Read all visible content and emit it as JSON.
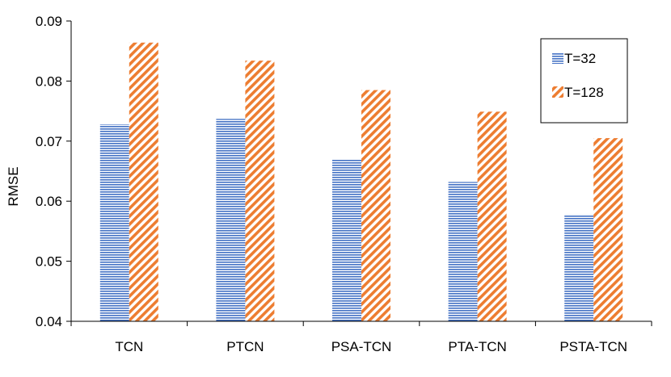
{
  "chart_data": {
    "type": "bar",
    "title": "",
    "xlabel": "",
    "ylabel": "RMSE",
    "ylim": [
      0.04,
      0.09
    ],
    "yticks": [
      "0.04",
      "0.05",
      "0.06",
      "0.07",
      "0.08",
      "0.09"
    ],
    "categories": [
      "TCN",
      "PTCN",
      "PSA-TCN",
      "PTA-TCN",
      "PSTA-TCN"
    ],
    "series": [
      {
        "name": "T=32",
        "values": [
          0.0728,
          0.0737,
          0.067,
          0.0632,
          0.0578
        ],
        "color": "#4472C4",
        "pattern": "horizontal-lines"
      },
      {
        "name": "T=128",
        "values": [
          0.0864,
          0.0834,
          0.0785,
          0.0749,
          0.0705
        ],
        "color": "#ED7D31",
        "pattern": "diagonal-stripes"
      }
    ],
    "grid": false,
    "legend_position": "top-right"
  }
}
